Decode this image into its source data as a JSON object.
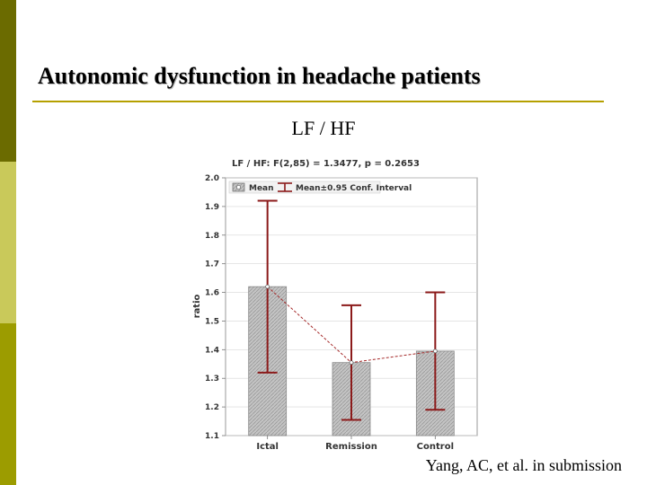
{
  "slide": {
    "title": "Autonomic dysfunction in headache patients",
    "subtitle": "LF / HF",
    "caption": "Yang, AC, et al. in submission"
  },
  "colors": {
    "bar_fill": "#bdbdbd",
    "error_bar": "#8b1a1a",
    "mean_line": "#a52a2a",
    "side_dark": "#6b6b00",
    "side_light": "#c9c95a",
    "side_mid": "#9c9c00",
    "title_rule": "#b5a000"
  },
  "chart_data": {
    "type": "bar",
    "title": "LF / HF:   F(2,85) = 1.3477, p = 0.2653",
    "ylabel": "ratio",
    "xlabel": "",
    "categories": [
      "Ictal",
      "Remission",
      "Control"
    ],
    "series": [
      {
        "name": "Mean",
        "values": [
          1.62,
          1.355,
          1.395
        ],
        "ci_low": [
          1.32,
          1.155,
          1.19
        ],
        "ci_high": [
          1.92,
          1.555,
          1.6
        ]
      }
    ],
    "legend": {
      "mean": "Mean",
      "ci": "Mean±0.95 Conf. Interval",
      "position": "top-left"
    },
    "ylim": [
      1.1,
      2.0
    ],
    "yticks": [
      "1.1",
      "1.2",
      "1.3",
      "1.4",
      "1.5",
      "1.6",
      "1.7",
      "1.8",
      "1.9",
      "2.0"
    ],
    "grid": true
  }
}
